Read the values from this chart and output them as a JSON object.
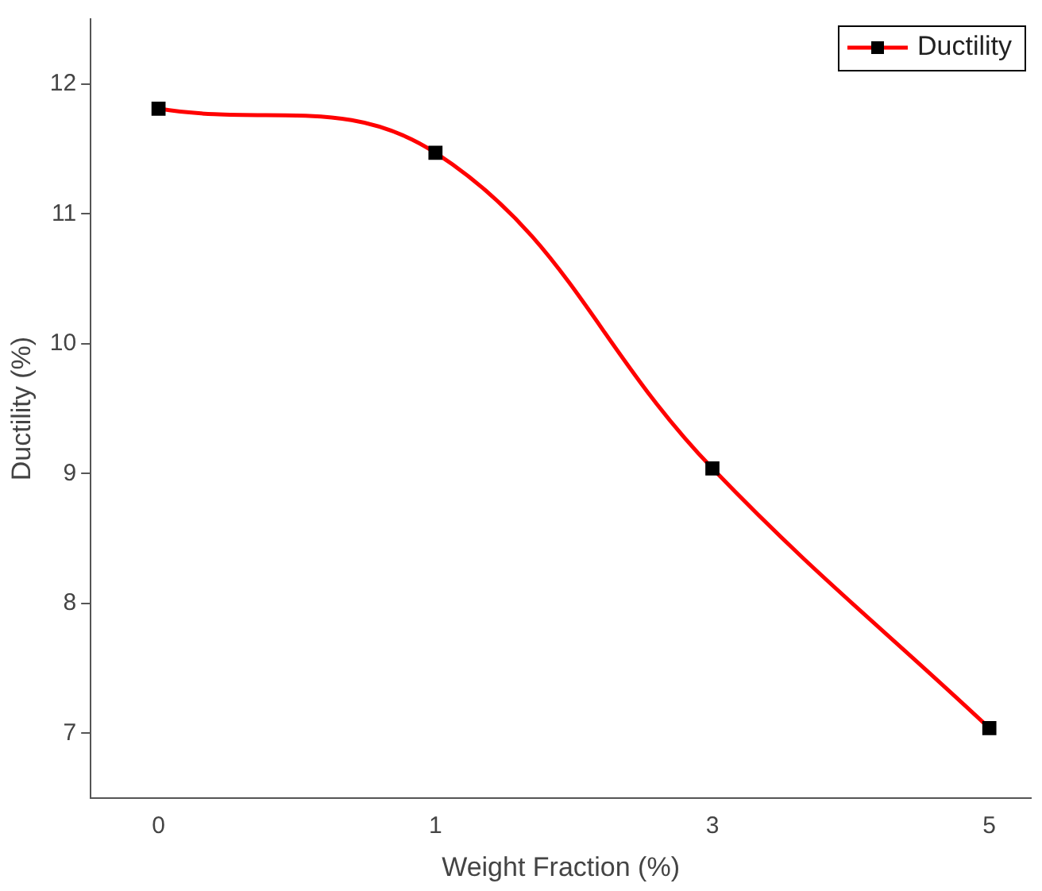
{
  "chart_data": {
    "type": "line",
    "xlabel": "Weight Fraction (%)",
    "ylabel": "Ductility (%)",
    "categories": [
      "0",
      "1",
      "3",
      "5"
    ],
    "series": [
      {
        "name": "Ductility",
        "color": "#ff0000",
        "values": [
          11.81,
          11.47,
          9.04,
          7.04
        ]
      }
    ],
    "ylim": [
      6.5,
      12.5
    ],
    "yticks": [
      7,
      8,
      9,
      10,
      11,
      12
    ],
    "grid": false,
    "legend": "top right",
    "marker": "square",
    "line_style": "solid"
  }
}
